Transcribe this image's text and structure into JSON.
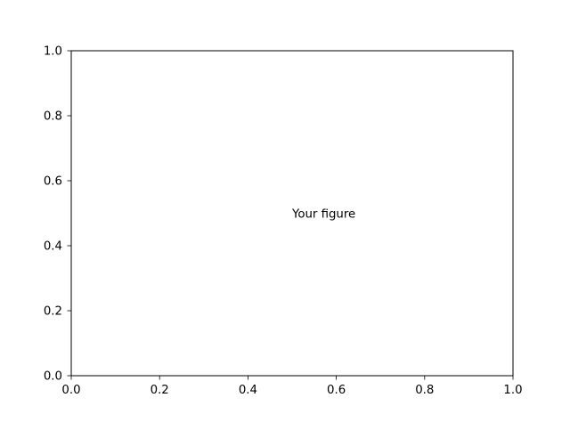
{
  "chart_data": {
    "type": "line",
    "title": "",
    "xlabel": "",
    "ylabel": "",
    "xlim": [
      0.0,
      1.0
    ],
    "ylim": [
      0.0,
      1.0
    ],
    "x_ticks": [
      0.0,
      0.2,
      0.4,
      0.6,
      0.8,
      1.0
    ],
    "y_ticks": [
      0.0,
      0.2,
      0.4,
      0.6,
      0.8,
      1.0
    ],
    "x_tick_labels": [
      "0.0",
      "0.2",
      "0.4",
      "0.6",
      "0.8",
      "1.0"
    ],
    "y_tick_labels": [
      "0.0",
      "0.2",
      "0.4",
      "0.6",
      "0.8",
      "1.0"
    ],
    "grid": false,
    "series": [],
    "annotations": [
      {
        "text": "Your figure",
        "x": 0.5,
        "y": 0.5
      }
    ]
  }
}
